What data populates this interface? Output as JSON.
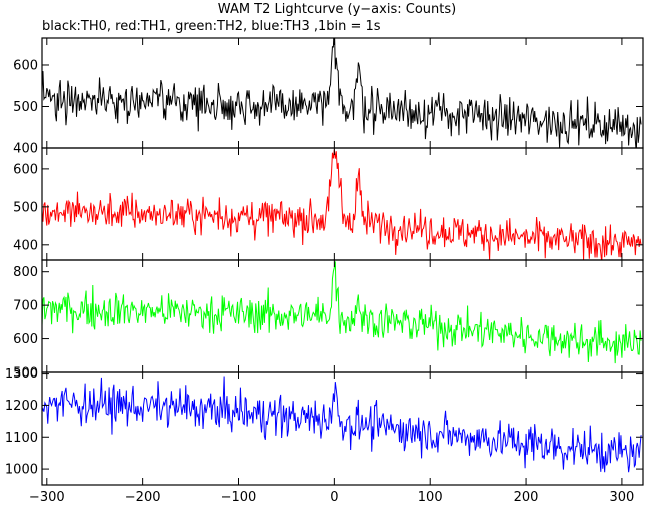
{
  "title": "WAM T2 Lightcurve (y−axis: Counts)",
  "subtitle": "black:TH0, red:TH1, green:TH2, blue:TH3 ,1bin = 1s",
  "chart_data": {
    "type": "line",
    "title": "WAM T2 Lightcurve (y−axis: Counts)",
    "subtitle": "black:TH0, red:TH1, green:TH2, blue:TH3 ,1bin = 1s",
    "xlim": [
      -305,
      322
    ],
    "x_ticks": [
      -300,
      -200,
      -100,
      0,
      100,
      200,
      300
    ],
    "x_tick_labels": [
      "−300",
      "−200",
      "−100",
      "0",
      "100",
      "200",
      "300"
    ],
    "x_step": 1,
    "grid": false,
    "panels": [
      {
        "series": "TH0",
        "color": "#000000",
        "ylim": [
          400,
          665
        ],
        "y_ticks": [
          400,
          500,
          600
        ],
        "profile": [
          [
            -300,
            522
          ],
          [
            -150,
            510
          ],
          [
            -50,
            500
          ],
          [
            0,
            505
          ],
          [
            100,
            485
          ],
          [
            200,
            468
          ],
          [
            320,
            450
          ]
        ],
        "peaks": [
          {
            "x": 0,
            "value": 650,
            "width_s": 2.5
          },
          {
            "x": 25,
            "value": 580,
            "width_s": 2.5
          }
        ],
        "noise_sd": 24
      },
      {
        "series": "TH1",
        "color": "#ff0000",
        "ylim": [
          360,
          655
        ],
        "y_ticks": [
          400,
          500,
          600
        ],
        "profile": [
          [
            -300,
            488
          ],
          [
            -150,
            480
          ],
          [
            -50,
            470
          ],
          [
            0,
            468
          ],
          [
            100,
            440
          ],
          [
            200,
            418
          ],
          [
            320,
            400
          ]
        ],
        "peaks": [
          {
            "x": 1,
            "value": 640,
            "width_s": 4
          },
          {
            "x": 25,
            "value": 575,
            "width_s": 2.5
          }
        ],
        "noise_sd": 24
      },
      {
        "series": "TH2",
        "color": "#00ff00",
        "ylim": [
          500,
          835
        ],
        "y_ticks": [
          500,
          600,
          700,
          800
        ],
        "profile": [
          [
            -300,
            690
          ],
          [
            -150,
            680
          ],
          [
            -50,
            670
          ],
          [
            0,
            665
          ],
          [
            100,
            640
          ],
          [
            200,
            610
          ],
          [
            320,
            580
          ]
        ],
        "peaks": [
          {
            "x": 0,
            "value": 810,
            "width_s": 2.5
          },
          {
            "x": 25,
            "value": 720,
            "width_s": 2
          }
        ],
        "noise_sd": 28
      },
      {
        "series": "TH3",
        "color": "#0000ff",
        "ylim": [
          950,
          1305
        ],
        "y_ticks": [
          1000,
          1100,
          1200,
          1300
        ],
        "profile": [
          [
            -300,
            1210
          ],
          [
            -150,
            1190
          ],
          [
            -50,
            1165
          ],
          [
            0,
            1150
          ],
          [
            100,
            1115
          ],
          [
            200,
            1080
          ],
          [
            320,
            1045
          ]
        ],
        "peaks": [
          {
            "x": 0,
            "value": 1245,
            "width_s": 2.5
          }
        ],
        "noise_sd": 32
      }
    ]
  }
}
